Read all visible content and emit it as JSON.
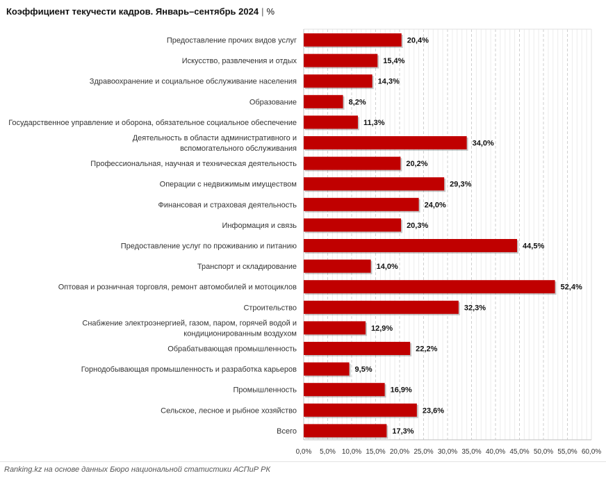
{
  "title": "Коэффициент текучести кадров. Январь–сентябрь 2024",
  "title_separator": "|",
  "title_unit": "%",
  "source": "Ranking.kz на основе данных Бюро национальной статистики АСПиР РК",
  "colors": {
    "bar": "#c00000",
    "grid": "#d9d9d9",
    "axis": "#bfbfbf"
  },
  "chart_data": {
    "type": "bar",
    "orientation": "horizontal",
    "title": "Коэффициент текучести кадров. Январь–сентябрь 2024",
    "xlim": [
      0,
      60
    ],
    "x_tick_step": 5,
    "x_tick_labels": [
      "0,0%",
      "5,0%",
      "10,0%",
      "15,0%",
      "20,0%",
      "25,0%",
      "30,0%",
      "35,0%",
      "40,0%",
      "45,0%",
      "50,0%",
      "55,0%",
      "60,0%"
    ],
    "grid": true,
    "categories": [
      [
        "Предоставление прочих видов услуг"
      ],
      [
        "Искусство, развлечения и отдых"
      ],
      [
        "Здравоохранение и социальное обслуживание населения"
      ],
      [
        "Образование"
      ],
      [
        "Государственное управление и оборона, обязательное социальное обеспечение"
      ],
      [
        "Деятельность в области административного и",
        "вспомогательного обслуживания"
      ],
      [
        "Профессиональная, научная и техническая деятельность"
      ],
      [
        "Операции с недвижимым имуществом"
      ],
      [
        "Финансовая и страховая деятельность"
      ],
      [
        "Информация и связь"
      ],
      [
        "Предоставление услуг по проживанию и питанию"
      ],
      [
        "Транспорт и складирование"
      ],
      [
        "Оптовая и розничная торговля, ремонт автомобилей и мотоциклов"
      ],
      [
        "Строительство"
      ],
      [
        "Снабжение электроэнергией, газом, паром, горячей водой и",
        "кондиционированным воздухом"
      ],
      [
        "Обрабатывающая промышленность"
      ],
      [
        "Горнодобывающая промышленность и разработка карьеров"
      ],
      [
        "Промышленность"
      ],
      [
        "Сельское, лесное и рыбное хозяйство"
      ],
      [
        "Всего"
      ]
    ],
    "values": [
      20.4,
      15.4,
      14.3,
      8.2,
      11.3,
      34.0,
      20.2,
      29.3,
      24.0,
      20.3,
      44.5,
      14.0,
      52.4,
      32.3,
      12.9,
      22.2,
      9.5,
      16.9,
      23.6,
      17.3
    ],
    "value_labels": [
      "20,4%",
      "15,4%",
      "14,3%",
      "8,2%",
      "11,3%",
      "34,0%",
      "20,2%",
      "29,3%",
      "24,0%",
      "20,3%",
      "44,5%",
      "14,0%",
      "52,4%",
      "32,3%",
      "12,9%",
      "22,2%",
      "9,5%",
      "16,9%",
      "23,6%",
      "17,3%"
    ]
  }
}
